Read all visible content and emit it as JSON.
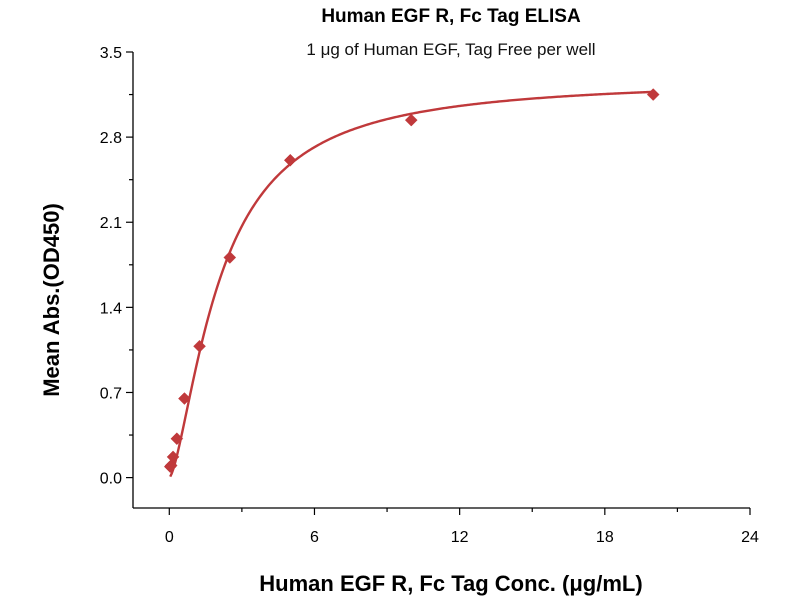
{
  "chart_data": {
    "type": "scatter",
    "title": "Human EGF R, Fc Tag ELISA",
    "subtitle": "1 μg of Human EGF, Tag Free per well",
    "xlabel": "Human EGF R, Fc Tag Conc. (μg/mL)",
    "ylabel": "Mean Abs.(OD450)",
    "xlim": [
      -1.5,
      24
    ],
    "ylim": [
      -0.25,
      3.5
    ],
    "x_ticks": [
      0,
      6,
      12,
      18,
      24
    ],
    "x_tick_labels": [
      "0",
      "6",
      "12",
      "18",
      "24"
    ],
    "y_ticks": [
      0.0,
      0.7,
      1.4,
      2.1,
      2.8,
      3.5
    ],
    "y_tick_labels": [
      "0.0",
      "0.7",
      "1.4",
      "2.1",
      "2.8",
      "3.5"
    ],
    "grid": false,
    "series": [
      {
        "x": [
          0.039,
          0.078,
          0.156,
          0.313,
          0.625,
          1.25,
          2.5,
          5,
          10,
          20
        ],
        "y": [
          0.09,
          0.1,
          0.17,
          0.32,
          0.65,
          1.08,
          1.81,
          2.61,
          2.94,
          3.15
        ],
        "color": "#C0393B",
        "marker": "diamond",
        "fit": "4PL",
        "fit_params": {
          "bottom": 0.0,
          "top": 3.28,
          "ec50": 2.1,
          "hill": 1.5
        }
      }
    ]
  }
}
